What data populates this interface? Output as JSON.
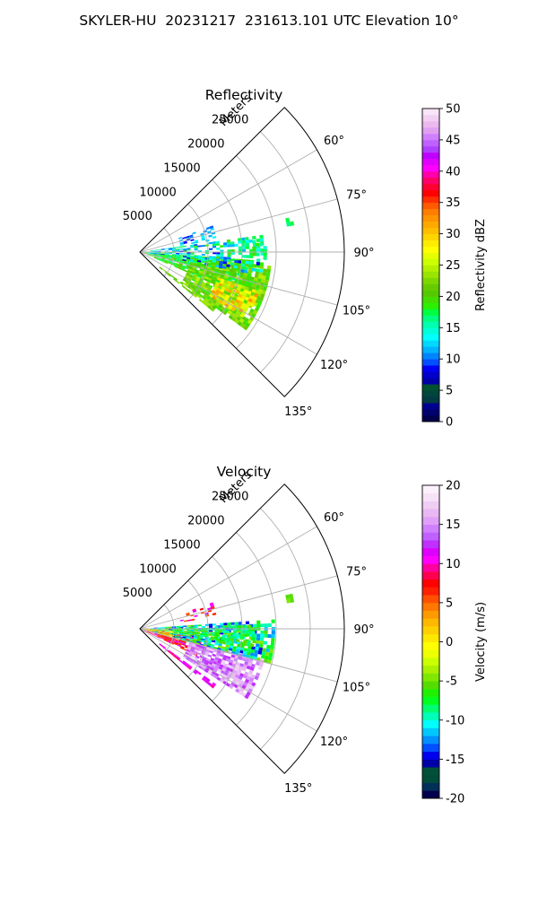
{
  "figure": {
    "title": "SKYLER-HU  20231217  231613.101 UTC Elevation 10°"
  },
  "chart_data": [
    {
      "type": "polar-sector",
      "title": "Reflectivity",
      "range_label": "Meters",
      "azimuth_ticks": [
        "60°",
        "75°",
        "90°",
        "105°",
        "120°",
        "135°"
      ],
      "azimuth_values": [
        60,
        75,
        90,
        105,
        120,
        135
      ],
      "azimuth_range": [
        45,
        135
      ],
      "range_ticks": [
        "5000",
        "10000",
        "15000",
        "20000",
        "25000"
      ],
      "range_values": [
        5000,
        10000,
        15000,
        20000,
        25000
      ],
      "range_max": 30000,
      "grid": true,
      "colorbar": {
        "label": "Reflectivity dBZ",
        "min": 0,
        "max": 50,
        "ticks": [
          "0",
          "5",
          "10",
          "15",
          "20",
          "25",
          "30",
          "35",
          "40",
          "45",
          "50"
        ],
        "tick_values": [
          0,
          5,
          10,
          15,
          20,
          25,
          30,
          35,
          40,
          45,
          50
        ],
        "colors": [
          "#00004c",
          "#00006e",
          "#00008f",
          "#003b43",
          "#00463b",
          "#005232",
          "#0000a6",
          "#0000cd",
          "#0000f3",
          "#0050ff",
          "#0084ff",
          "#00b3ff",
          "#00d8ff",
          "#00ffff",
          "#00ffd8",
          "#00ffb0",
          "#00ff80",
          "#00ff40",
          "#2eef00",
          "#44dd00",
          "#55c900",
          "#66cc00",
          "#7fd700",
          "#99e400",
          "#b3f000",
          "#ccff00",
          "#e6ff00",
          "#ffff00",
          "#ffeb00",
          "#ffd500",
          "#ffbd00",
          "#ffa800",
          "#ff9300",
          "#ff7e00",
          "#ff5a00",
          "#ff2e00",
          "#ff0000",
          "#ff0033",
          "#ff0066",
          "#ff00aa",
          "#ff00ff",
          "#e000ff",
          "#c000ff",
          "#b040ff",
          "#c060ff",
          "#d080ff",
          "#e0a0f0",
          "#ebb8f0",
          "#f2d0f2",
          "#f8e6f8"
        ]
      }
    },
    {
      "type": "polar-sector",
      "title": "Velocity",
      "range_label": "Meters",
      "azimuth_ticks": [
        "60°",
        "75°",
        "90°",
        "105°",
        "120°",
        "135°"
      ],
      "azimuth_values": [
        60,
        75,
        90,
        105,
        120,
        135
      ],
      "azimuth_range": [
        45,
        135
      ],
      "range_ticks": [
        "5000",
        "10000",
        "15000",
        "20000",
        "25000"
      ],
      "range_values": [
        5000,
        10000,
        15000,
        20000,
        25000
      ],
      "range_max": 30000,
      "grid": true,
      "colorbar": {
        "label": "Velocity (m/s)",
        "min": -20,
        "max": 20,
        "ticks": [
          "-20",
          "-15",
          "-10",
          "-5",
          "0",
          "5",
          "10",
          "15",
          "20"
        ],
        "tick_values": [
          -20,
          -15,
          -10,
          -5,
          0,
          5,
          10,
          15,
          20
        ],
        "colors": [
          "#00004c",
          "#00305a",
          "#004c3a",
          "#00503a",
          "#0000a6",
          "#0000ee",
          "#0050ff",
          "#0090ff",
          "#00c8ff",
          "#00ffff",
          "#00ffb8",
          "#00ff70",
          "#00ff20",
          "#20f000",
          "#55dd00",
          "#80e800",
          "#aaf000",
          "#ccff00",
          "#eeff00",
          "#ffff00",
          "#ffe800",
          "#ffd000",
          "#ffb800",
          "#ff9a00",
          "#ff7800",
          "#ff5000",
          "#ff2000",
          "#ff0000",
          "#ff0050",
          "#ff00a0",
          "#ff00ff",
          "#dd00ff",
          "#c030ff",
          "#c060ff",
          "#d080ff",
          "#e0a0f8",
          "#e8b8f4",
          "#f0cef4",
          "#f6e2f6",
          "#fbf0fb"
        ]
      }
    }
  ]
}
